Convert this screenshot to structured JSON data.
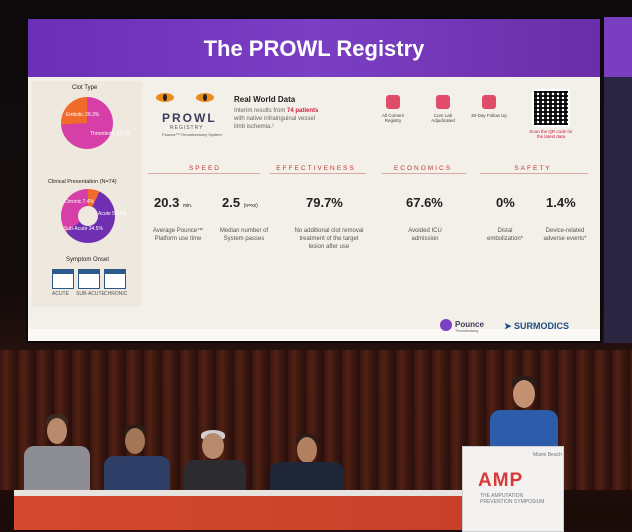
{
  "slide": {
    "title": "The PROWL Registry",
    "left_panel": {
      "clot_type_title": "Clot Type",
      "clot_type_labels": [
        "Embolic 26.3%",
        "Thrombotic 73.7%"
      ],
      "clinical_title": "Clinical Presentation (N=74)",
      "clinical_labels": [
        "Chronic 7.4%",
        "Acute 58.1%",
        "Sub-Acute 34.5%"
      ],
      "symptom_title": "Symptom Onset",
      "symptom_labels": [
        "ACUTE",
        "SUB-ACUTE",
        "CHRONIC"
      ]
    },
    "brand": {
      "name": "PROWL",
      "sub": "REGISTRY",
      "tagline": "Pounce™ Thrombectomy System"
    },
    "real_world": {
      "title": "Real World Data",
      "line1_prefix": "Interim results from ",
      "line1_bold": "74 patients",
      "line2": "with native infrainguinal vessel",
      "line3": "limb ischemia.¹"
    },
    "icons": [
      {
        "name": "users-icon",
        "label": "All Comers Registry"
      },
      {
        "name": "heart-icon",
        "label": "Core Lab Adjudicated"
      },
      {
        "name": "calendar-icon",
        "label": "30-Day Follow Up"
      }
    ],
    "qr_caption": "Scan the QR code for the latest data",
    "categories": [
      "SPEED",
      "EFFECTIVENESS",
      "ECONOMICS",
      "SAFETY"
    ],
    "metrics": [
      {
        "value": "20.3",
        "unit": "min.",
        "desc": "Average Pounce™ Platform use time"
      },
      {
        "value": "2.5",
        "unit": "(n=xx)",
        "desc": "Median number of System passes"
      },
      {
        "value": "79.7%",
        "unit": "",
        "desc": "No additional clot removal treatment of the target lesion after use"
      },
      {
        "value": "67.6%",
        "unit": "",
        "desc": "Avoided ICU admission"
      },
      {
        "value": "0%",
        "unit": "",
        "desc": "Distal embolization*"
      },
      {
        "value": "1.4%",
        "unit": "",
        "desc": "Device-related adverse events*"
      }
    ],
    "logos": {
      "pounce": "Pounce",
      "pounce_sub": "Thrombectomy",
      "surmodics": "SURMODICS"
    }
  },
  "podium": {
    "brand": "AMP",
    "sub": "THE AMPUTATION PREVENTION SYMPOSIUM",
    "tag": "Miami Beach"
  },
  "colors": {
    "banner": "#6b2fb8",
    "accent_red": "#c0392b",
    "pie_magenta": "#d63fa8",
    "pie_orange": "#f06a2a",
    "pie_purple": "#6f2fb0",
    "podium_red": "#d83a3a"
  }
}
